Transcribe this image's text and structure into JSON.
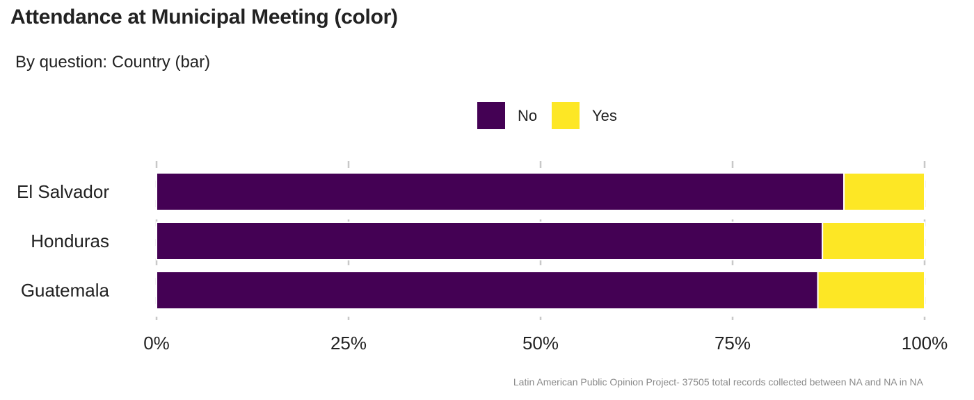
{
  "chart_data": {
    "type": "bar",
    "orientation": "horizontal",
    "stacked": true,
    "title": "Attendance at Municipal Meeting (color)",
    "subtitle": "By question: Country (bar)",
    "caption": "Latin American Public Opinion Project- 37505 total records collected between NA and NA in  NA",
    "categories": [
      "El Salvador",
      "Honduras",
      "Guatemala"
    ],
    "series": [
      {
        "name": "No",
        "color": "#440154",
        "values": [
          0.895,
          0.867,
          0.861
        ]
      },
      {
        "name": "Yes",
        "color": "#FDE725",
        "values": [
          0.105,
          0.133,
          0.139
        ]
      }
    ],
    "xlim": [
      0,
      1
    ],
    "xticks": [
      {
        "value": 0,
        "label": "0%"
      },
      {
        "value": 0.25,
        "label": "25%"
      },
      {
        "value": 0.5,
        "label": "50%"
      },
      {
        "value": 0.75,
        "label": "75%"
      },
      {
        "value": 1,
        "label": "100%"
      }
    ],
    "legend_position": "top",
    "grid": "vertical-major"
  }
}
